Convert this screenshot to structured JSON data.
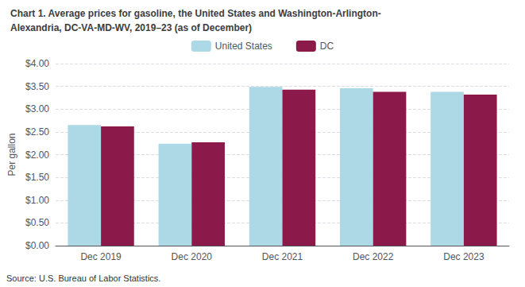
{
  "chart_data": {
    "type": "bar",
    "title": "Chart 1. Average prices for gasoline, the United States and Washington-Arlington-",
    "subtitle": "Alexandria, DC-VA-MD-WV, 2019–23 (as of December)",
    "ylabel": "Per gallon",
    "annotations": [
      "Source: U.S. Bureau of Labor Statistics."
    ],
    "categories": [
      "Dec 2019",
      "Dec 2020",
      "Dec 2021",
      "Dec 2022",
      "Dec 2023"
    ],
    "series": [
      {
        "name": "United States",
        "color": "#add8e6",
        "values": [
          2.65,
          2.24,
          3.49,
          3.46,
          3.38
        ]
      },
      {
        "name": "DC",
        "color": "#8b1a4a",
        "values": [
          2.62,
          2.27,
          3.43,
          3.38,
          3.32
        ]
      }
    ],
    "ylim": [
      0,
      4.0
    ],
    "yticks": [
      {
        "value": 0.0,
        "label": "$0.00"
      },
      {
        "value": 0.5,
        "label": "$0.50"
      },
      {
        "value": 1.0,
        "label": "$1.00"
      },
      {
        "value": 1.5,
        "label": "$1.50"
      },
      {
        "value": 2.0,
        "label": "$2.00"
      },
      {
        "value": 2.5,
        "label": "$2.50"
      },
      {
        "value": 3.0,
        "label": "$3.00"
      },
      {
        "value": 3.5,
        "label": "$3.50"
      },
      {
        "value": 4.0,
        "label": "$4.00"
      }
    ],
    "grid": true,
    "legend": "top"
  }
}
